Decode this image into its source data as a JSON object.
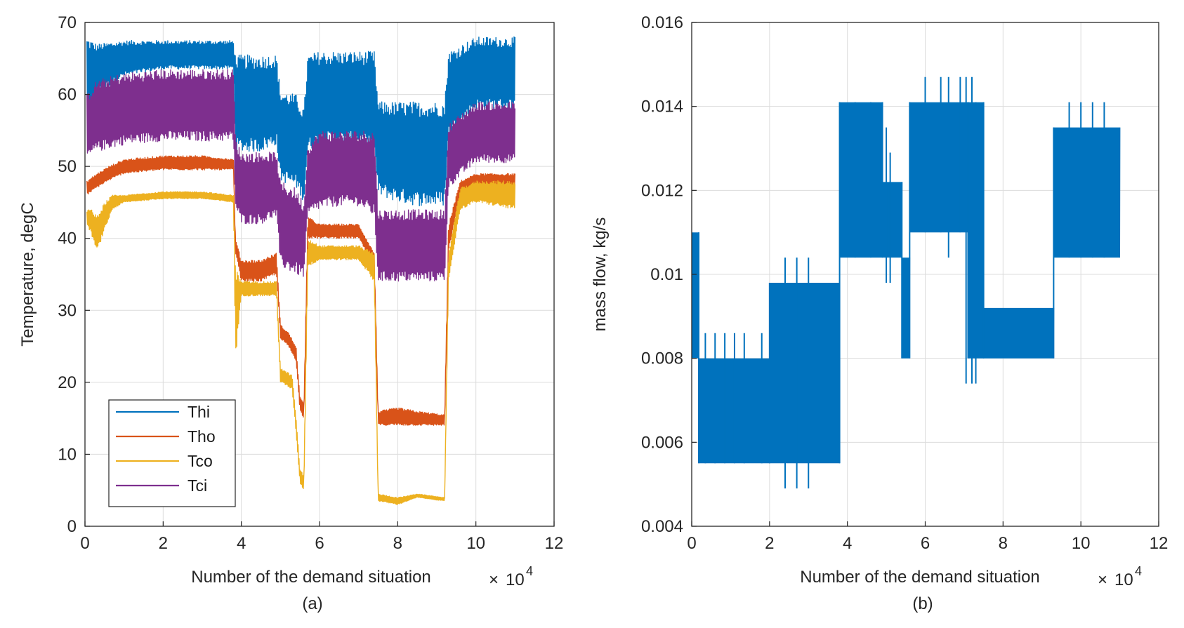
{
  "chart_data": [
    {
      "type": "line",
      "panel_label": "(a)",
      "xlabel": "Number of the demand situation",
      "x_exponent": {
        "times": "×",
        "base": "10",
        "power": "4"
      },
      "ylabel": "Temperature, degC",
      "xlim": [
        0,
        12
      ],
      "ylim": [
        0,
        70
      ],
      "xticks": [
        "0",
        "2",
        "4",
        "6",
        "8",
        "10",
        "12"
      ],
      "yticks": [
        "0",
        "10",
        "20",
        "30",
        "40",
        "50",
        "60",
        "70"
      ],
      "grid": true,
      "legend": "bottom-left",
      "series": [
        {
          "name": "Thi",
          "color": "#0072BD",
          "x": [
            0.05,
            0.3,
            1,
            2,
            3,
            3.8,
            3.85,
            4.5,
            4.9,
            5.0,
            5.4,
            5.6,
            5.7,
            6.0,
            6.5,
            7.0,
            7.4,
            7.5,
            8.0,
            8.5,
            9.2,
            9.3,
            10,
            11.0
          ],
          "low": [
            56,
            60,
            62.5,
            63.5,
            63.5,
            63.5,
            52,
            52,
            53,
            48,
            47,
            45,
            52,
            53,
            53,
            53,
            52,
            46,
            45,
            44.5,
            44.5,
            54,
            58,
            58
          ],
          "high": [
            68,
            67,
            67.5,
            67.5,
            67.5,
            67.5,
            65.5,
            65.5,
            65.5,
            60.5,
            60,
            58,
            65.5,
            66,
            66,
            66,
            66,
            59,
            59,
            59,
            59,
            66,
            68,
            68
          ]
        },
        {
          "name": "Tci",
          "color": "#7E2F8E",
          "x": [
            0.05,
            0.3,
            1,
            2,
            3,
            3.8,
            3.85,
            4.0,
            4.5,
            4.9,
            5.0,
            5.4,
            5.6,
            5.7,
            6.0,
            6.5,
            7.0,
            7.4,
            7.5,
            8.0,
            8.5,
            9.2,
            9.3,
            10,
            11.0
          ],
          "low": [
            51,
            52,
            53,
            53.5,
            53.5,
            53.5,
            44,
            42,
            42,
            43,
            36,
            35,
            34.5,
            43,
            44,
            44.5,
            44.5,
            43,
            34,
            34,
            34,
            34,
            47,
            50.5,
            50.5
          ],
          "high": [
            60,
            62,
            63,
            63.5,
            63.5,
            63.5,
            54,
            52,
            52,
            52,
            48,
            47,
            45,
            53,
            55,
            55,
            55,
            55,
            44,
            44,
            44,
            44,
            56,
            59,
            59
          ]
        },
        {
          "name": "Tho",
          "color": "#D95319",
          "x": [
            0.05,
            0.3,
            0.6,
            1,
            2,
            3,
            3.8,
            3.85,
            4.0,
            4.5,
            4.9,
            5.0,
            5.2,
            5.4,
            5.5,
            5.6,
            5.7,
            6.0,
            6.5,
            7.0,
            7.4,
            7.5,
            8.0,
            8.5,
            9.2,
            9.3,
            9.6,
            10,
            11.0
          ],
          "low": [
            46,
            47,
            48,
            49,
            49.5,
            49.5,
            49.5,
            38,
            34,
            34,
            35,
            26,
            25,
            23,
            16,
            15,
            40,
            40,
            40,
            40,
            36,
            14,
            14,
            14,
            14,
            38,
            46,
            47,
            47
          ],
          "high": [
            48,
            49,
            50,
            51,
            51.5,
            51.5,
            51,
            40,
            37,
            37,
            38,
            28,
            27,
            25,
            18,
            17,
            43,
            42,
            42,
            42,
            38,
            16,
            16.5,
            16,
            15.5,
            42,
            48,
            49,
            49
          ]
        },
        {
          "name": "Tco",
          "color": "#EDB120",
          "x": [
            0.05,
            0.2,
            0.3,
            0.5,
            0.7,
            1,
            2,
            3,
            3.8,
            3.85,
            4.0,
            4.5,
            4.9,
            5.0,
            5.3,
            5.4,
            5.5,
            5.6,
            5.7,
            6.0,
            6.5,
            7.0,
            7.4,
            7.5,
            8.0,
            8.5,
            9.2,
            9.3,
            9.6,
            10,
            11.0
          ],
          "low": [
            42,
            40,
            38,
            41,
            44,
            45,
            45.5,
            45.5,
            45,
            23,
            32,
            32,
            32,
            20,
            19,
            13,
            6,
            5,
            36,
            37,
            37,
            37,
            34,
            3.5,
            3,
            4,
            3.5,
            34,
            44,
            45,
            44
          ],
          "high": [
            44,
            44,
            43,
            45,
            46,
            46,
            46.5,
            46.5,
            46,
            36,
            34,
            34,
            34,
            22,
            21,
            15,
            8,
            7,
            40,
            39,
            39,
            39,
            38,
            4.5,
            4,
            4.5,
            4,
            38,
            47,
            48,
            48
          ]
        }
      ]
    },
    {
      "type": "line",
      "panel_label": "(b)",
      "xlabel": "Number of the demand situation",
      "x_exponent": {
        "times": "×",
        "base": "10",
        "power": "4"
      },
      "ylabel": "mass flow, kg/s",
      "xlim": [
        0,
        12
      ],
      "ylim": [
        0.004,
        0.016
      ],
      "xticks": [
        "0",
        "2",
        "4",
        "6",
        "8",
        "10",
        "12"
      ],
      "yticks": [
        "0.004",
        "0.006",
        "0.008",
        "0.01",
        "0.012",
        "0.014",
        "0.016"
      ],
      "grid": true,
      "series": [
        {
          "name": "mass flow",
          "color": "#0072BD",
          "segments": [
            {
              "x": [
                0.0,
                0.18
              ],
              "low": 0.008,
              "high": 0.011
            },
            {
              "x": [
                0.18,
                2.0
              ],
              "low": 0.0055,
              "high": 0.008
            },
            {
              "x": [
                2.0,
                3.8
              ],
              "low": 0.0055,
              "high": 0.0098
            },
            {
              "x": [
                3.8,
                4.9
              ],
              "low": 0.0104,
              "high": 0.0141
            },
            {
              "x": [
                4.9,
                5.4
              ],
              "low": 0.0104,
              "high": 0.0122
            },
            {
              "x": [
                5.4,
                5.6
              ],
              "low": 0.008,
              "high": 0.0104
            },
            {
              "x": [
                5.6,
                7.1
              ],
              "low": 0.011,
              "high": 0.0141
            },
            {
              "x": [
                7.1,
                7.5
              ],
              "low": 0.008,
              "high": 0.0141
            },
            {
              "x": [
                7.5,
                9.3
              ],
              "low": 0.008,
              "high": 0.0092
            },
            {
              "x": [
                9.3,
                11.0
              ],
              "low": 0.0104,
              "high": 0.0135
            }
          ],
          "spikes": [
            [
              0.35,
              0.0055,
              0.0086
            ],
            [
              0.6,
              0.0055,
              0.0086
            ],
            [
              0.85,
              0.0055,
              0.0086
            ],
            [
              1.1,
              0.0055,
              0.0086
            ],
            [
              1.35,
              0.0055,
              0.0086
            ],
            [
              1.8,
              0.0055,
              0.0086
            ],
            [
              2.4,
              0.0049,
              0.0104
            ],
            [
              2.7,
              0.0049,
              0.0104
            ],
            [
              3.0,
              0.0049,
              0.0104
            ],
            [
              4.2,
              0.0104,
              0.0141
            ],
            [
              4.6,
              0.0104,
              0.0141
            ],
            [
              5.0,
              0.0098,
              0.0135
            ],
            [
              5.1,
              0.0098,
              0.0129
            ],
            [
              6.0,
              0.011,
              0.0147
            ],
            [
              6.4,
              0.011,
              0.0147
            ],
            [
              6.6,
              0.0104,
              0.0147
            ],
            [
              6.9,
              0.011,
              0.0147
            ],
            [
              7.05,
              0.0074,
              0.0147
            ],
            [
              7.2,
              0.0074,
              0.0147
            ],
            [
              7.3,
              0.0074,
              0.0141
            ],
            [
              9.7,
              0.0104,
              0.0141
            ],
            [
              10.0,
              0.0104,
              0.0141
            ],
            [
              10.3,
              0.0104,
              0.0141
            ],
            [
              10.6,
              0.0104,
              0.0141
            ]
          ]
        }
      ]
    }
  ]
}
